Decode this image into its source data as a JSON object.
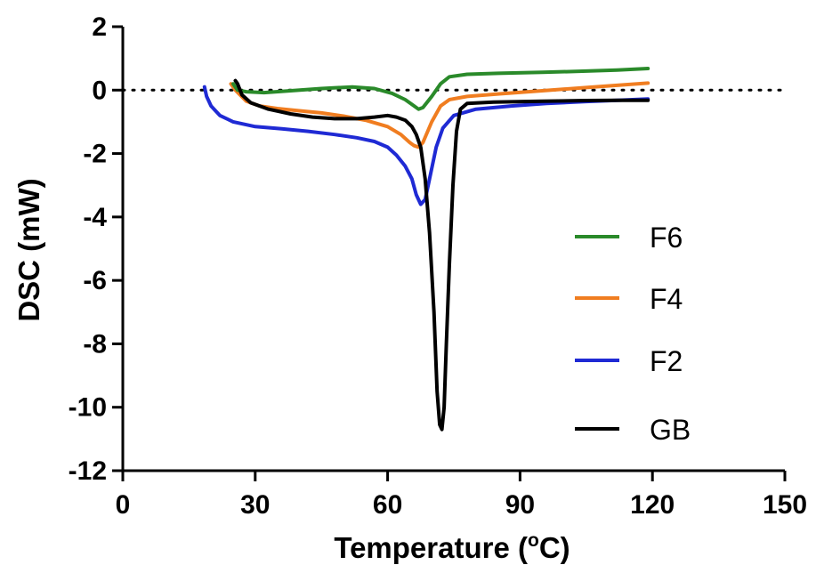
{
  "chart_data": {
    "type": "line",
    "title": "",
    "xlabel": "Temperature (",
    "xlabel_sup": "o",
    "xlabel_end": "C)",
    "ylabel": "DSC (mW)",
    "xlim": [
      0,
      150
    ],
    "ylim": [
      -12,
      2
    ],
    "x_ticks": [
      0,
      30,
      60,
      90,
      120,
      150
    ],
    "y_ticks": [
      2,
      0,
      -2,
      -4,
      -6,
      -8,
      -10,
      -12
    ],
    "x_tick_labels": [
      "0",
      "30",
      "60",
      "90",
      "120",
      "150"
    ],
    "y_tick_labels": [
      "2",
      "0",
      "-2",
      "-4",
      "-6",
      "-8",
      "-10",
      "-12"
    ],
    "grid": false,
    "baseline": {
      "y": 0,
      "style": "dotted"
    },
    "legend_position": "right",
    "series": [
      {
        "name": "F6",
        "color": "#2a8a2a",
        "points": [
          [
            25,
            0.2
          ],
          [
            26,
            0.0
          ],
          [
            28,
            -0.05
          ],
          [
            32,
            -0.08
          ],
          [
            38,
            -0.02
          ],
          [
            45,
            0.05
          ],
          [
            52,
            0.1
          ],
          [
            57,
            0.05
          ],
          [
            61,
            -0.1
          ],
          [
            64,
            -0.3
          ],
          [
            66,
            -0.5
          ],
          [
            67,
            -0.6
          ],
          [
            68,
            -0.55
          ],
          [
            70,
            -0.2
          ],
          [
            72,
            0.2
          ],
          [
            74,
            0.42
          ],
          [
            78,
            0.5
          ],
          [
            85,
            0.53
          ],
          [
            95,
            0.56
          ],
          [
            105,
            0.6
          ],
          [
            112,
            0.63
          ],
          [
            119,
            0.68
          ]
        ]
      },
      {
        "name": "F4",
        "color": "#f07d20",
        "points": [
          [
            24.5,
            0.2
          ],
          [
            25.5,
            0.0
          ],
          [
            28,
            -0.35
          ],
          [
            31,
            -0.5
          ],
          [
            35,
            -0.58
          ],
          [
            40,
            -0.65
          ],
          [
            45,
            -0.72
          ],
          [
            50,
            -0.82
          ],
          [
            55,
            -0.95
          ],
          [
            60,
            -1.15
          ],
          [
            63,
            -1.4
          ],
          [
            65,
            -1.65
          ],
          [
            66,
            -1.75
          ],
          [
            67,
            -1.8
          ],
          [
            68,
            -1.65
          ],
          [
            70,
            -1.0
          ],
          [
            72,
            -0.5
          ],
          [
            74,
            -0.3
          ],
          [
            78,
            -0.2
          ],
          [
            85,
            -0.12
          ],
          [
            95,
            -0.02
          ],
          [
            105,
            0.08
          ],
          [
            112,
            0.15
          ],
          [
            119,
            0.22
          ]
        ]
      },
      {
        "name": "F2",
        "color": "#1f2ad4",
        "points": [
          [
            18.5,
            0.1
          ],
          [
            19,
            -0.2
          ],
          [
            20,
            -0.5
          ],
          [
            22,
            -0.8
          ],
          [
            25,
            -1.0
          ],
          [
            30,
            -1.15
          ],
          [
            36,
            -1.22
          ],
          [
            42,
            -1.3
          ],
          [
            48,
            -1.4
          ],
          [
            53,
            -1.5
          ],
          [
            57,
            -1.62
          ],
          [
            60,
            -1.8
          ],
          [
            62,
            -2.05
          ],
          [
            64,
            -2.4
          ],
          [
            65.5,
            -2.8
          ],
          [
            66.5,
            -3.3
          ],
          [
            67.5,
            -3.6
          ],
          [
            68.5,
            -3.45
          ],
          [
            69.5,
            -2.8
          ],
          [
            71,
            -1.8
          ],
          [
            72.5,
            -1.2
          ],
          [
            75,
            -0.8
          ],
          [
            80,
            -0.6
          ],
          [
            88,
            -0.5
          ],
          [
            96,
            -0.42
          ],
          [
            105,
            -0.36
          ],
          [
            112,
            -0.32
          ],
          [
            119,
            -0.28
          ]
        ]
      },
      {
        "name": "GB",
        "color": "#000000",
        "points": [
          [
            25.5,
            0.3
          ],
          [
            26,
            0.2
          ],
          [
            27,
            -0.15
          ],
          [
            29,
            -0.4
          ],
          [
            33,
            -0.6
          ],
          [
            38,
            -0.75
          ],
          [
            43,
            -0.85
          ],
          [
            48,
            -0.9
          ],
          [
            53,
            -0.9
          ],
          [
            57,
            -0.85
          ],
          [
            60,
            -0.8
          ],
          [
            62,
            -0.85
          ],
          [
            64,
            -0.95
          ],
          [
            65.5,
            -1.15
          ],
          [
            66.5,
            -1.4
          ],
          [
            67.5,
            -1.8
          ],
          [
            68.5,
            -2.8
          ],
          [
            69.5,
            -4.5
          ],
          [
            70.5,
            -7.0
          ],
          [
            71.2,
            -9.5
          ],
          [
            71.8,
            -10.55
          ],
          [
            72.3,
            -10.7
          ],
          [
            72.8,
            -10.0
          ],
          [
            73.3,
            -8.0
          ],
          [
            74,
            -5.5
          ],
          [
            74.8,
            -3.0
          ],
          [
            75.6,
            -1.3
          ],
          [
            76.5,
            -0.6
          ],
          [
            78,
            -0.42
          ],
          [
            84,
            -0.38
          ],
          [
            95,
            -0.35
          ],
          [
            105,
            -0.33
          ],
          [
            112,
            -0.32
          ],
          [
            119,
            -0.32
          ]
        ]
      }
    ]
  }
}
